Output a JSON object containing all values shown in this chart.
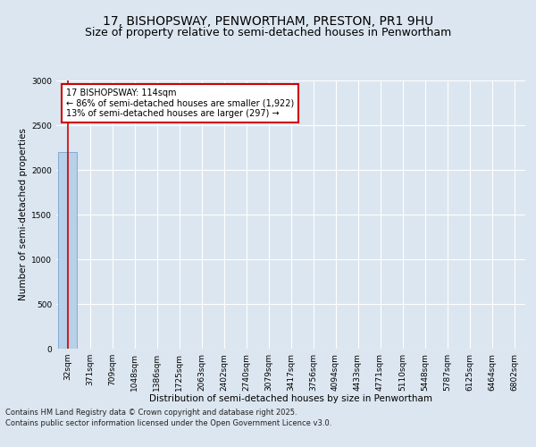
{
  "title_line1": "17, BISHOPSWAY, PENWORTHAM, PRESTON, PR1 9HU",
  "title_line2": "Size of property relative to semi-detached houses in Penwortham",
  "xlabel": "Distribution of semi-detached houses by size in Penwortham",
  "ylabel": "Number of semi-detached properties",
  "footer_line1": "Contains HM Land Registry data © Crown copyright and database right 2025.",
  "footer_line2": "Contains public sector information licensed under the Open Government Licence v3.0.",
  "categories": [
    "32sqm",
    "371sqm",
    "709sqm",
    "1048sqm",
    "1386sqm",
    "1725sqm",
    "2063sqm",
    "2402sqm",
    "2740sqm",
    "3079sqm",
    "3417sqm",
    "3756sqm",
    "4094sqm",
    "4433sqm",
    "4771sqm",
    "5110sqm",
    "5448sqm",
    "5787sqm",
    "6125sqm",
    "6464sqm",
    "6802sqm"
  ],
  "values": [
    2200,
    0,
    0,
    0,
    0,
    0,
    0,
    0,
    0,
    0,
    0,
    0,
    0,
    0,
    0,
    0,
    0,
    0,
    0,
    0,
    0
  ],
  "bar_color": "#b8d0e8",
  "bar_edge_color": "#6699cc",
  "annotation_line1": "17 BISHOPSWAY: 114sqm",
  "annotation_line2": "← 86% of semi-detached houses are smaller (1,922)",
  "annotation_line3": "13% of semi-detached houses are larger (297) →",
  "annotation_box_color": "#cc0000",
  "vline_color": "#cc0000",
  "vline_x": 0,
  "ylim": [
    0,
    3000
  ],
  "yticks": [
    0,
    500,
    1000,
    1500,
    2000,
    2500,
    3000
  ],
  "bg_color": "#dce6f0",
  "plot_bg_color": "#dce6f0",
  "grid_color": "#ffffff",
  "title_fontsize": 10,
  "subtitle_fontsize": 9,
  "axis_label_fontsize": 7.5,
  "tick_fontsize": 6.5,
  "annotation_fontsize": 7,
  "footer_fontsize": 6
}
